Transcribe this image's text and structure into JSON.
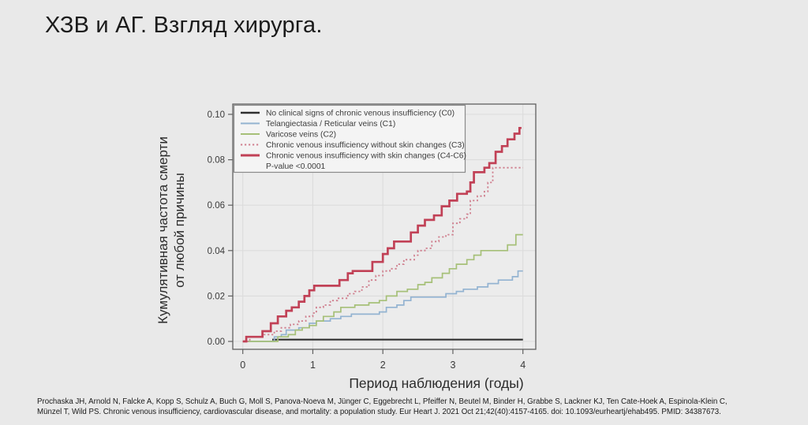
{
  "title": "ХЗВ и АГ. Взгляд хирурга.",
  "citation": {
    "line1": "Prochaska JH, Arnold N, Falcke A, Kopp S, Schulz A, Buch G, Moll S, Panova-Noeva M, Jünger C, Eggebrecht L, Pfeiffer N, Beutel M, Binder H, Grabbe S, Lackner KJ, Ten Cate-Hoek A, Espinola-Klein C,",
    "line2": "Münzel T, Wild PS. Chronic venous insufficiency, cardiovascular disease, and mortality: a population study. Eur Heart J. 2021 Oct 21;42(40):4157-4165. doi: 10.1093/eurheartj/ehab495. PMID: 34387673."
  },
  "chart_data": {
    "type": "line",
    "step": true,
    "title": "",
    "xlabel": "Период наблюдения (годы)",
    "ylabel_lines": [
      "Кумулятивная частота смерти",
      "от любой причины"
    ],
    "xlim": [
      0,
      4
    ],
    "ylim": [
      0,
      0.1
    ],
    "xticks": [
      0,
      1,
      2,
      3,
      4
    ],
    "xtick_labels": [
      "0",
      "1",
      "2",
      "3",
      "4"
    ],
    "yticks": [
      0,
      0.02,
      0.04,
      0.06,
      0.08,
      0.1
    ],
    "ytick_labels": [
      "0.00",
      "0.02",
      "0.04",
      "0.06",
      "0.08",
      "0.10"
    ],
    "grid": true,
    "colors": {
      "plot_bg": "#ececec",
      "gridline": "#dcdcdc",
      "frame": "#606060",
      "axis_text": "#3a3a3a",
      "legend_bg": "#f4f4f4",
      "legend_border": "#8a8a8a",
      "legend_text": "#3d3d3d"
    },
    "legend": {
      "position": "top-left",
      "p_value": "P-value <0.0001"
    },
    "series": [
      {
        "name": "No clinical signs of chronic venous insufficiency (C0)",
        "id": "c0",
        "color": "#2f2f2f",
        "width": 2.1,
        "dash": null,
        "points": [
          [
            0.42,
            0.0008
          ],
          [
            4.0,
            0.0008
          ]
        ]
      },
      {
        "name": "Telangiectasia / Reticular veins (C1)",
        "id": "c1",
        "color": "#93b3d1",
        "width": 1.7,
        "dash": null,
        "points": [
          [
            0,
            0
          ],
          [
            0.45,
            0.002
          ],
          [
            0.55,
            0.003
          ],
          [
            0.62,
            0.005
          ],
          [
            0.8,
            0.006
          ],
          [
            0.95,
            0.008
          ],
          [
            1.05,
            0.009
          ],
          [
            1.25,
            0.01
          ],
          [
            1.4,
            0.011
          ],
          [
            1.55,
            0.012
          ],
          [
            1.95,
            0.013
          ],
          [
            2.05,
            0.015
          ],
          [
            2.2,
            0.016
          ],
          [
            2.3,
            0.018
          ],
          [
            2.4,
            0.0195
          ],
          [
            2.9,
            0.021
          ],
          [
            3.05,
            0.022
          ],
          [
            3.15,
            0.023
          ],
          [
            3.35,
            0.024
          ],
          [
            3.5,
            0.0255
          ],
          [
            3.65,
            0.027
          ],
          [
            3.85,
            0.0285
          ],
          [
            3.93,
            0.031
          ],
          [
            4.0,
            0.031
          ]
        ]
      },
      {
        "name": "Varicose veins (C2)",
        "id": "c2",
        "color": "#a6c078",
        "width": 1.7,
        "dash": null,
        "points": [
          [
            0,
            0
          ],
          [
            0.5,
            0.002
          ],
          [
            0.65,
            0.003
          ],
          [
            0.75,
            0.005
          ],
          [
            0.85,
            0.006
          ],
          [
            0.95,
            0.007
          ],
          [
            1.05,
            0.009
          ],
          [
            1.15,
            0.011
          ],
          [
            1.3,
            0.013
          ],
          [
            1.4,
            0.015
          ],
          [
            1.6,
            0.016
          ],
          [
            1.8,
            0.017
          ],
          [
            1.95,
            0.018
          ],
          [
            2.05,
            0.02
          ],
          [
            2.2,
            0.022
          ],
          [
            2.35,
            0.023
          ],
          [
            2.5,
            0.025
          ],
          [
            2.6,
            0.026
          ],
          [
            2.7,
            0.028
          ],
          [
            2.85,
            0.03
          ],
          [
            2.95,
            0.032
          ],
          [
            3.05,
            0.034
          ],
          [
            3.2,
            0.036
          ],
          [
            3.3,
            0.038
          ],
          [
            3.4,
            0.04
          ],
          [
            3.78,
            0.0425
          ],
          [
            3.9,
            0.047
          ],
          [
            4.0,
            0.047
          ]
        ]
      },
      {
        "name": "Chronic venous insufficiency without skin changes (C3)",
        "id": "c3",
        "color": "#cf7f8e",
        "width": 1.8,
        "dash": "2.2 2.8",
        "points": [
          [
            0,
            0
          ],
          [
            0.1,
            0.002
          ],
          [
            0.3,
            0.003
          ],
          [
            0.45,
            0.0045
          ],
          [
            0.55,
            0.006
          ],
          [
            0.68,
            0.0075
          ],
          [
            0.8,
            0.009
          ],
          [
            0.9,
            0.011
          ],
          [
            1.0,
            0.0125
          ],
          [
            1.05,
            0.015
          ],
          [
            1.15,
            0.016
          ],
          [
            1.25,
            0.018
          ],
          [
            1.35,
            0.019
          ],
          [
            1.5,
            0.021
          ],
          [
            1.6,
            0.022
          ],
          [
            1.7,
            0.024
          ],
          [
            1.8,
            0.027
          ],
          [
            1.9,
            0.029
          ],
          [
            2.0,
            0.031
          ],
          [
            2.1,
            0.032
          ],
          [
            2.2,
            0.034
          ],
          [
            2.3,
            0.036
          ],
          [
            2.45,
            0.038
          ],
          [
            2.5,
            0.04
          ],
          [
            2.6,
            0.041
          ],
          [
            2.7,
            0.044
          ],
          [
            2.8,
            0.046
          ],
          [
            2.9,
            0.047
          ],
          [
            3.0,
            0.052
          ],
          [
            3.1,
            0.054
          ],
          [
            3.2,
            0.056
          ],
          [
            3.25,
            0.062
          ],
          [
            3.35,
            0.064
          ],
          [
            3.45,
            0.066
          ],
          [
            3.5,
            0.07
          ],
          [
            3.57,
            0.0765
          ],
          [
            4.0,
            0.0765
          ]
        ]
      },
      {
        "name": "Chronic venous insufficiency with skin changes (C4-C6)",
        "id": "c4-c6",
        "color": "#c14156",
        "width": 2.7,
        "dash": null,
        "points": [
          [
            0,
            0
          ],
          [
            0.05,
            0.002
          ],
          [
            0.28,
            0.0045
          ],
          [
            0.4,
            0.008
          ],
          [
            0.5,
            0.011
          ],
          [
            0.62,
            0.0135
          ],
          [
            0.7,
            0.015
          ],
          [
            0.8,
            0.0175
          ],
          [
            0.88,
            0.02
          ],
          [
            0.95,
            0.0225
          ],
          [
            1.02,
            0.0245
          ],
          [
            1.38,
            0.027
          ],
          [
            1.5,
            0.03
          ],
          [
            1.57,
            0.031
          ],
          [
            1.85,
            0.035
          ],
          [
            2.0,
            0.0385
          ],
          [
            2.07,
            0.041
          ],
          [
            2.16,
            0.044
          ],
          [
            2.4,
            0.048
          ],
          [
            2.5,
            0.051
          ],
          [
            2.6,
            0.0535
          ],
          [
            2.73,
            0.0555
          ],
          [
            2.84,
            0.0595
          ],
          [
            2.95,
            0.062
          ],
          [
            3.06,
            0.065
          ],
          [
            3.2,
            0.066
          ],
          [
            3.25,
            0.07
          ],
          [
            3.3,
            0.0745
          ],
          [
            3.45,
            0.0765
          ],
          [
            3.52,
            0.0785
          ],
          [
            3.61,
            0.0835
          ],
          [
            3.7,
            0.086
          ],
          [
            3.78,
            0.089
          ],
          [
            3.88,
            0.0915
          ],
          [
            3.95,
            0.094
          ],
          [
            3.98,
            0.094
          ]
        ]
      }
    ]
  }
}
